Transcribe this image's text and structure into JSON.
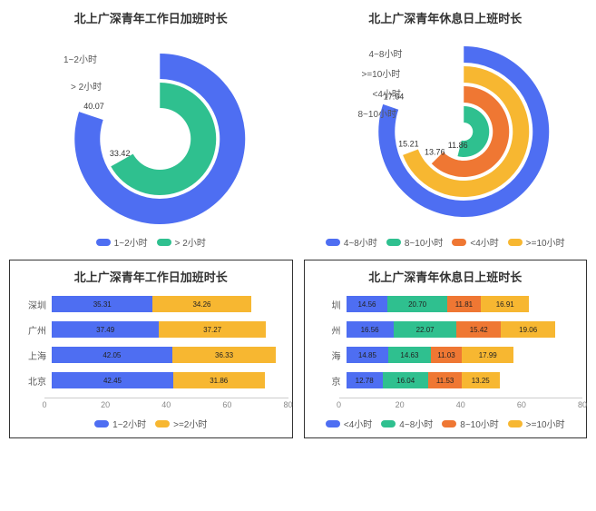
{
  "colors": {
    "blue": "#4e6ef2",
    "green": "#2fc08f",
    "orange_red": "#ef7733",
    "yellow": "#f7b731",
    "grid": "#e0e0e0",
    "text": "#333333"
  },
  "chart1": {
    "title": "北上广深青年工作日加班时长",
    "type": "radial-bar",
    "categories": [
      "1~2小时",
      "> 2小时"
    ],
    "values": [
      40.07,
      33.42
    ],
    "colors": [
      "#4e6ef2",
      "#2fc08f"
    ],
    "max": 50,
    "legend": [
      "1~2小时",
      "> 2小时"
    ]
  },
  "chart2": {
    "title": "北上广深青年休息日上班时长",
    "type": "radial-bar",
    "categories": [
      "4~8小时",
      ">=10小时",
      "<4小时",
      "8~10小时"
    ],
    "values": [
      17.64,
      15.21,
      13.76,
      11.86
    ],
    "colors": [
      "#4e6ef2",
      "#f7b731",
      "#ef7733",
      "#2fc08f"
    ],
    "max": 22,
    "legend": [
      "4~8小时",
      "8~10小时",
      "<4小时",
      ">=10小时"
    ],
    "legend_colors": [
      "#4e6ef2",
      "#2fc08f",
      "#ef7733",
      "#f7b731"
    ]
  },
  "chart3": {
    "title": "北上广深青年工作日加班时长",
    "type": "stacked-bar-h",
    "row_labels": [
      "深圳",
      "广州",
      "上海",
      "北京"
    ],
    "series_labels": [
      "1~2小时",
      ">=2小时"
    ],
    "series_colors": [
      "#4e6ef2",
      "#f7b731"
    ],
    "rows": [
      [
        35.31,
        34.26
      ],
      [
        37.49,
        37.27
      ],
      [
        42.05,
        36.33
      ],
      [
        42.45,
        31.86
      ]
    ],
    "xmax": 80,
    "xticks": [
      0,
      20,
      40,
      60,
      80
    ]
  },
  "chart4": {
    "title": "北上广深青年休息日上班时长",
    "type": "stacked-bar-h",
    "row_labels": [
      "圳",
      "州",
      "海",
      "京"
    ],
    "series_labels": [
      "<4小时",
      "4~8小时",
      "8~10小时",
      ">=10小时"
    ],
    "series_colors": [
      "#4e6ef2",
      "#2fc08f",
      "#ef7733",
      "#f7b731"
    ],
    "rows": [
      [
        14.56,
        20.7,
        11.81,
        16.91
      ],
      [
        16.56,
        22.07,
        15.42,
        19.06
      ],
      [
        14.85,
        14.63,
        11.03,
        17.99
      ],
      [
        12.78,
        16.04,
        11.53,
        13.25
      ]
    ],
    "xmax": 80,
    "xticks": [
      0,
      20,
      40,
      60,
      80
    ]
  }
}
